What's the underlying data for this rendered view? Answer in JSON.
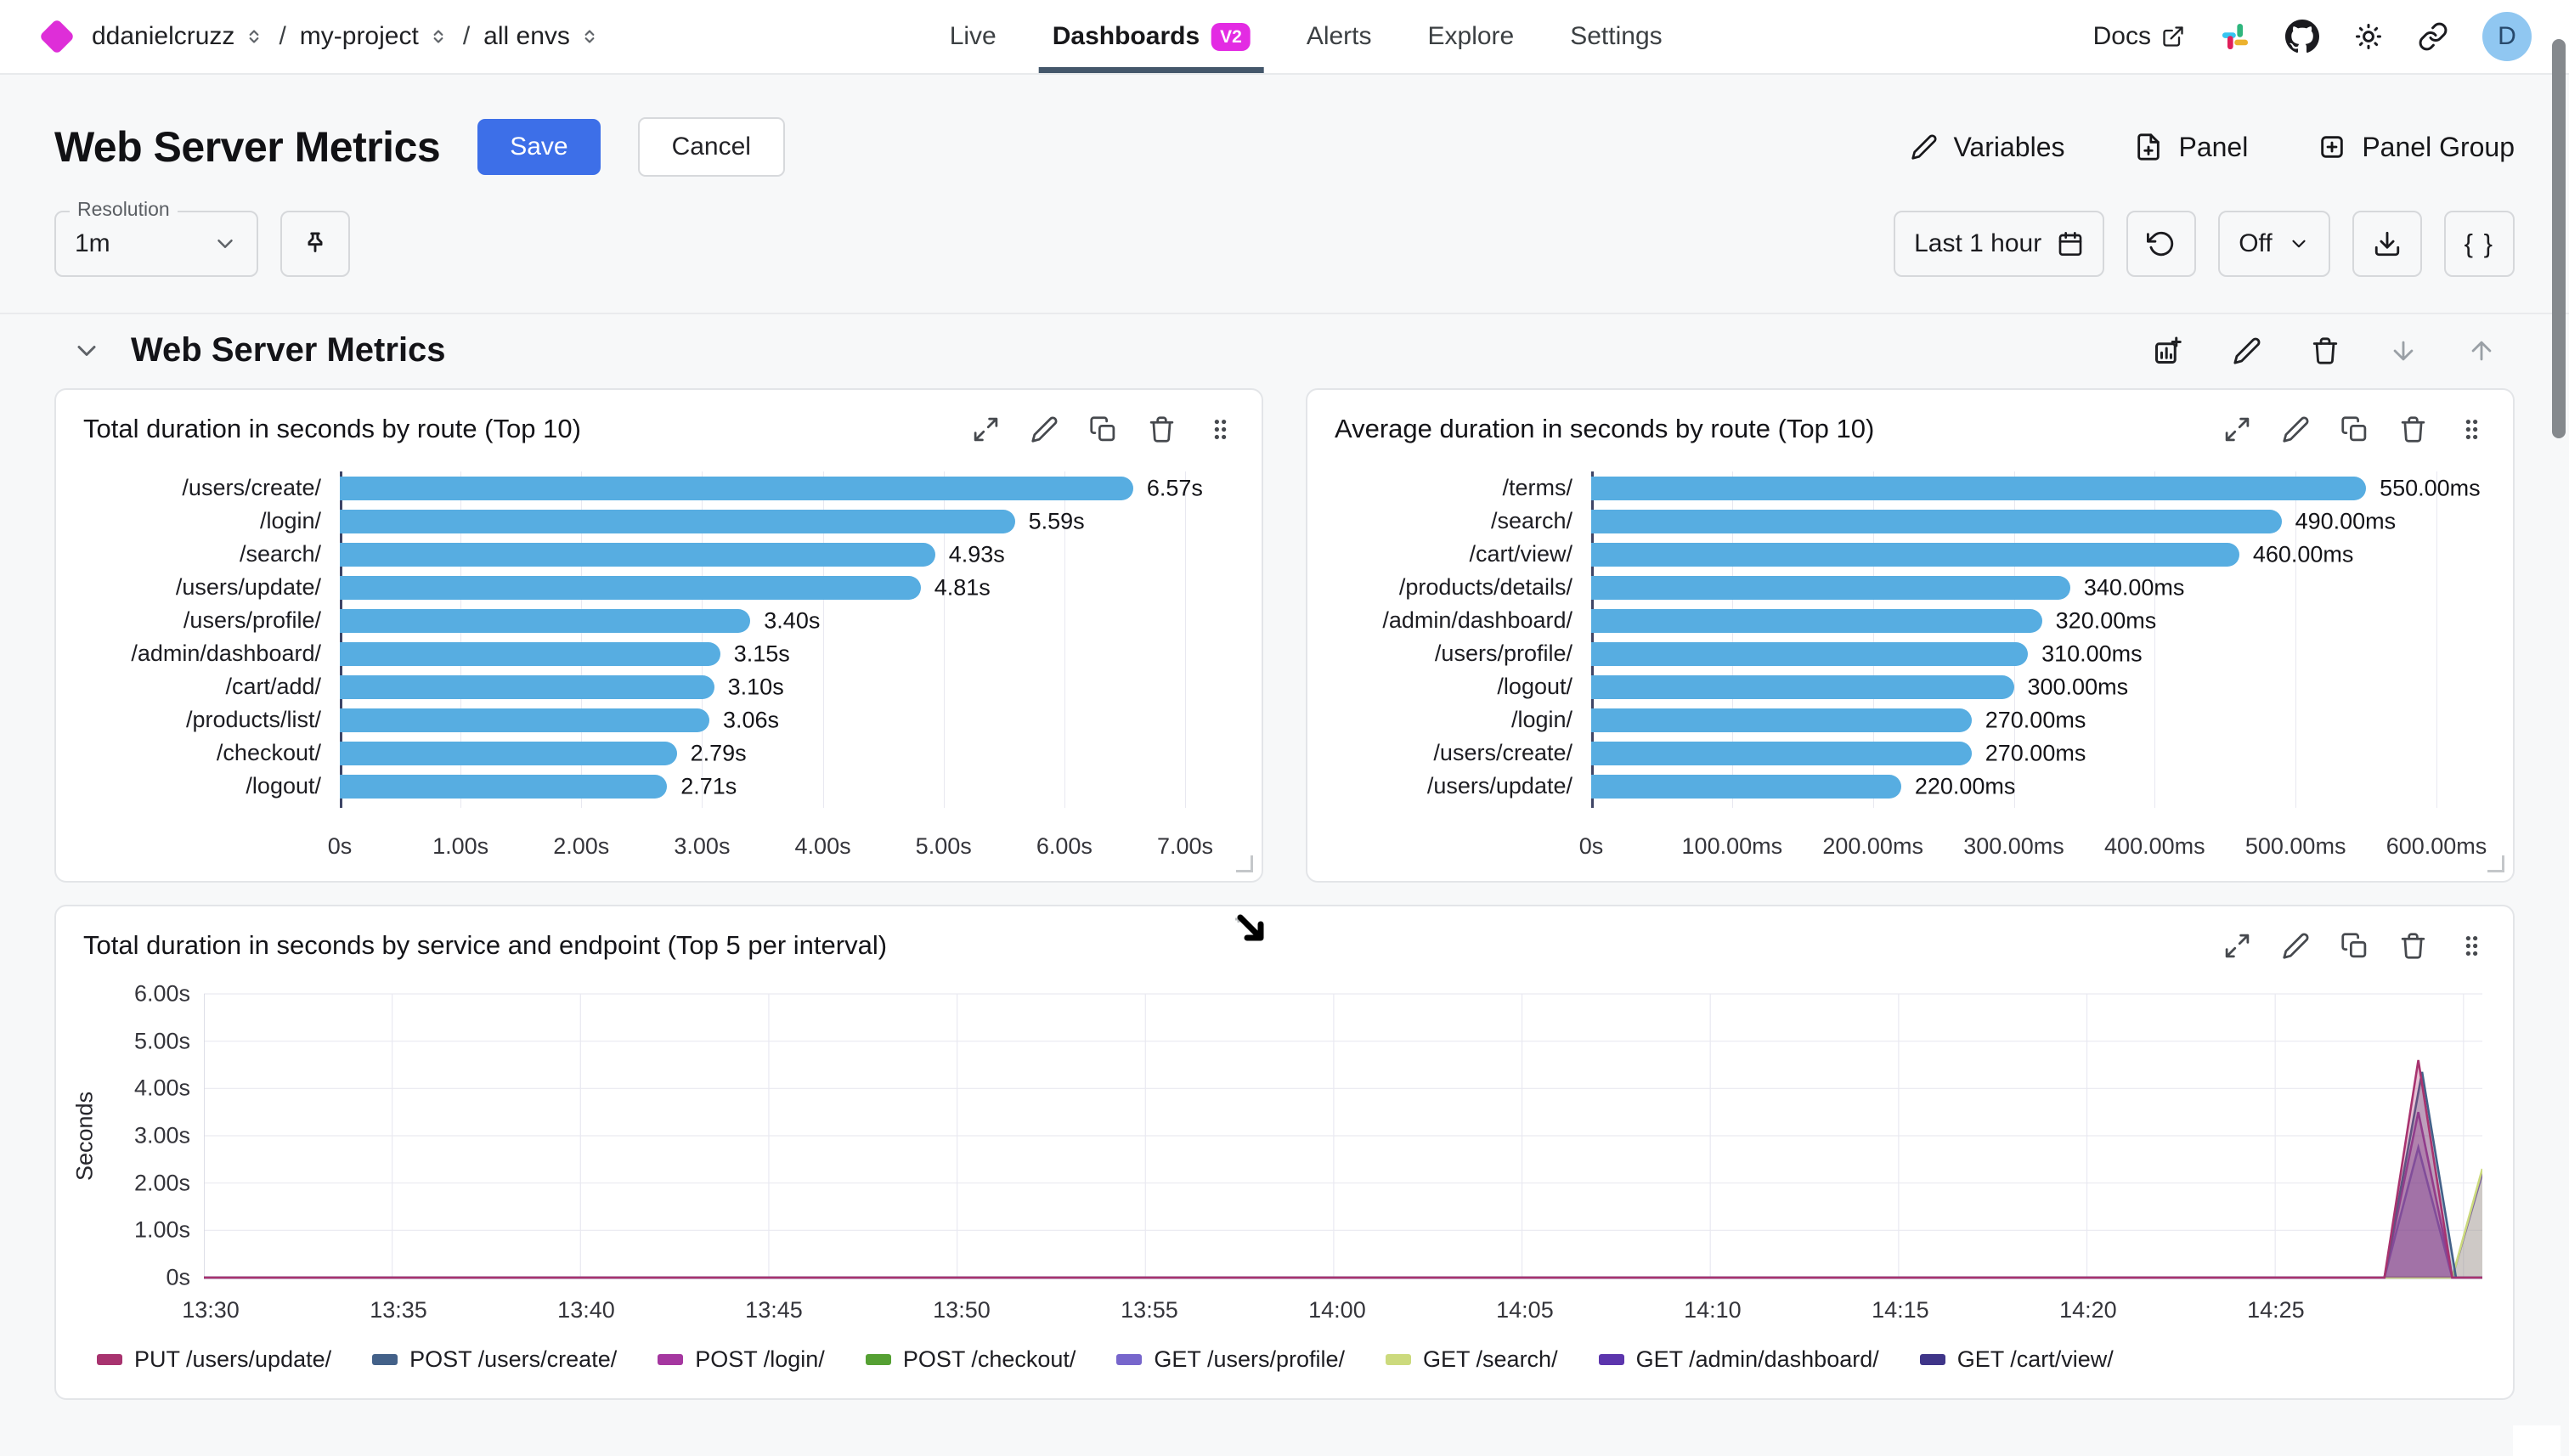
{
  "topbar": {
    "breadcrumb": [
      {
        "label": "ddanielcruzz"
      },
      {
        "label": "my-project"
      },
      {
        "label": "all envs"
      }
    ],
    "nav": [
      {
        "label": "Live",
        "active": false
      },
      {
        "label": "Dashboards",
        "active": true,
        "badge": "V2"
      },
      {
        "label": "Alerts",
        "active": false
      },
      {
        "label": "Explore",
        "active": false
      },
      {
        "label": "Settings",
        "active": false
      }
    ],
    "docs_label": "Docs",
    "avatar_initial": "D"
  },
  "header": {
    "title": "Web Server Metrics",
    "save_label": "Save",
    "cancel_label": "Cancel",
    "actions": [
      {
        "label": "Variables",
        "icon": "pencil-icon"
      },
      {
        "label": "Panel",
        "icon": "file-plus-icon"
      },
      {
        "label": "Panel Group",
        "icon": "square-plus-icon"
      }
    ]
  },
  "toolbar": {
    "resolution_label": "Resolution",
    "resolution_value": "1m",
    "time_range": "Last 1 hour",
    "refresh_mode": "Off",
    "braces_label": "{ }"
  },
  "section": {
    "title": "Web Server Metrics"
  },
  "colors": {
    "accent_magenta": "#e32be3",
    "save_button_blue": "#3d6fe8",
    "active_tab_underline": "#44576b",
    "bar_blue": "#57ade1"
  },
  "chart_data": [
    {
      "type": "bar",
      "orientation": "horizontal",
      "title": "Total duration in seconds by route (Top 10)",
      "categories": [
        "/users/create/",
        "/login/",
        "/search/",
        "/users/update/",
        "/users/profile/",
        "/admin/dashboard/",
        "/cart/add/",
        "/products/list/",
        "/checkout/",
        "/logout/"
      ],
      "values": [
        6.57,
        5.59,
        4.93,
        4.81,
        3.4,
        3.15,
        3.1,
        3.06,
        2.79,
        2.71
      ],
      "value_labels": [
        "6.57s",
        "5.59s",
        "4.93s",
        "4.81s",
        "3.40s",
        "3.15s",
        "3.10s",
        "3.06s",
        "2.79s",
        "2.71s"
      ],
      "xlim": [
        0,
        7
      ],
      "x_ticks": [
        "0s",
        "1.00s",
        "2.00s",
        "3.00s",
        "4.00s",
        "5.00s",
        "6.00s",
        "7.00s"
      ],
      "bar_color": "#57ade1",
      "grid": true
    },
    {
      "type": "bar",
      "orientation": "horizontal",
      "title": "Average duration in seconds by route (Top 10)",
      "categories": [
        "/terms/",
        "/search/",
        "/cart/view/",
        "/products/details/",
        "/admin/dashboard/",
        "/users/profile/",
        "/logout/",
        "/login/",
        "/users/create/",
        "/users/update/"
      ],
      "values": [
        550,
        490,
        460,
        340,
        320,
        310,
        300,
        270,
        270,
        220
      ],
      "value_labels": [
        "550.00ms",
        "490.00ms",
        "460.00ms",
        "340.00ms",
        "320.00ms",
        "310.00ms",
        "300.00ms",
        "270.00ms",
        "270.00ms",
        "220.00ms"
      ],
      "xlim": [
        0,
        600
      ],
      "x_ticks": [
        "0s",
        "100.00ms",
        "200.00ms",
        "300.00ms",
        "400.00ms",
        "500.00ms",
        "600.00ms"
      ],
      "bar_color": "#57ade1",
      "grid": true
    },
    {
      "type": "area",
      "title": "Total duration in seconds by service and endpoint (Top 5 per interval)",
      "ylabel": "Seconds",
      "ylim": [
        0,
        6
      ],
      "y_ticks": [
        "6.00s",
        "5.00s",
        "4.00s",
        "3.00s",
        "2.00s",
        "1.00s",
        "0s"
      ],
      "x_ticks": [
        "13:30",
        "13:35",
        "13:40",
        "13:45",
        "13:50",
        "13:55",
        "14:00",
        "14:05",
        "14:10",
        "14:15",
        "14:20",
        "14:25"
      ],
      "x_tick_interval_minutes": 5,
      "x_range_minutes": [
        0,
        60.5
      ],
      "x_start_time": "13:30",
      "grid": true,
      "legend_position": "bottom",
      "series": [
        {
          "name": "PUT /users/update/",
          "color": "#a8336f",
          "points": [
            [
              0,
              0
            ],
            [
              57.9,
              0
            ],
            [
              58.8,
              4.6
            ],
            [
              59.7,
              0
            ],
            [
              60.5,
              0
            ]
          ]
        },
        {
          "name": "POST /users/create/",
          "color": "#436189",
          "points": [
            [
              0,
              0
            ],
            [
              57.9,
              0
            ],
            [
              58.9,
              4.35
            ],
            [
              59.8,
              0
            ],
            [
              60.5,
              0
            ]
          ]
        },
        {
          "name": "POST /login/",
          "color": "#a537a0",
          "points": [
            [
              0,
              0
            ],
            [
              57.9,
              0
            ],
            [
              58.8,
              3.5
            ],
            [
              59.7,
              0
            ],
            [
              60.5,
              0
            ]
          ]
        },
        {
          "name": "POST /checkout/",
          "color": "#55a033",
          "points": [
            [
              0,
              0
            ],
            [
              60.5,
              0
            ]
          ]
        },
        {
          "name": "GET /users/profile/",
          "color": "#7766cc",
          "points": [
            [
              0,
              0
            ],
            [
              57.9,
              0
            ],
            [
              58.8,
              2.75
            ],
            [
              59.7,
              0
            ],
            [
              60.5,
              0
            ]
          ]
        },
        {
          "name": "GET /search/",
          "color": "#ccda7d",
          "points": [
            [
              0,
              0
            ],
            [
              59.7,
              0
            ],
            [
              60.5,
              2.3
            ]
          ]
        },
        {
          "name": "GET /admin/dashboard/",
          "color": "#5c35ad",
          "points": [
            [
              0,
              0
            ],
            [
              59.7,
              0
            ],
            [
              60.5,
              2.2
            ]
          ]
        },
        {
          "name": "GET /cart/view/",
          "color": "#3f3589",
          "points": [
            [
              0,
              0
            ],
            [
              60.5,
              0
            ]
          ]
        }
      ],
      "draw_order": [
        3,
        7,
        6,
        5,
        4,
        2,
        1,
        0
      ]
    }
  ]
}
